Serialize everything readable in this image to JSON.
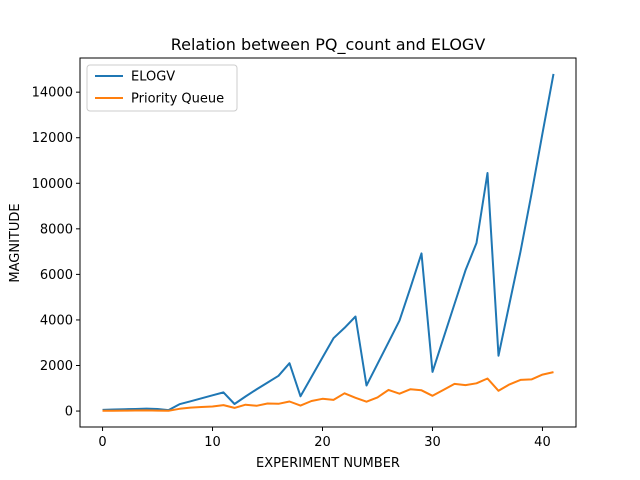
{
  "chart_data": {
    "type": "line",
    "title": "Relation between PQ_count and ELOGV",
    "xlabel": "EXPERIMENT NUMBER",
    "ylabel": "MAGNITUDE",
    "xlim": [
      -2.05,
      43.05
    ],
    "ylim": [
      -700,
      15500
    ],
    "xticks": [
      0,
      10,
      20,
      30,
      40
    ],
    "yticks": [
      0,
      2000,
      4000,
      6000,
      8000,
      10000,
      12000,
      14000
    ],
    "grid": false,
    "legend": "top-left",
    "x": [
      0,
      1,
      2,
      3,
      4,
      5,
      6,
      7,
      8,
      9,
      10,
      11,
      12,
      13,
      14,
      15,
      16,
      17,
      18,
      19,
      20,
      21,
      22,
      23,
      24,
      25,
      26,
      27,
      28,
      29,
      30,
      31,
      32,
      33,
      34,
      35,
      36,
      37,
      38,
      39,
      40,
      41
    ],
    "series": [
      {
        "name": "ELOGV",
        "color": "#1f77b4",
        "values": [
          50,
          70,
          80,
          90,
          110,
          90,
          40,
          300,
          430,
          560,
          690,
          820,
          310,
          640,
          950,
          1250,
          1550,
          2100,
          650,
          1500,
          2350,
          3200,
          3650,
          4150,
          1120,
          2070,
          3020,
          3970,
          5420,
          6920,
          1720,
          3210,
          4700,
          6180,
          7380,
          10450,
          2430,
          4720,
          7000,
          9540,
          12200,
          14800
        ]
      },
      {
        "name": "Priority Queue",
        "color": "#ff7f0e",
        "values": [
          10,
          15,
          20,
          25,
          30,
          20,
          10,
          100,
          150,
          180,
          200,
          260,
          140,
          280,
          230,
          330,
          320,
          420,
          240,
          440,
          540,
          490,
          780,
          580,
          410,
          600,
          930,
          760,
          960,
          910,
          670,
          930,
          1190,
          1140,
          1220,
          1430,
          890,
          1170,
          1370,
          1390,
          1600,
          1710
        ]
      }
    ]
  }
}
